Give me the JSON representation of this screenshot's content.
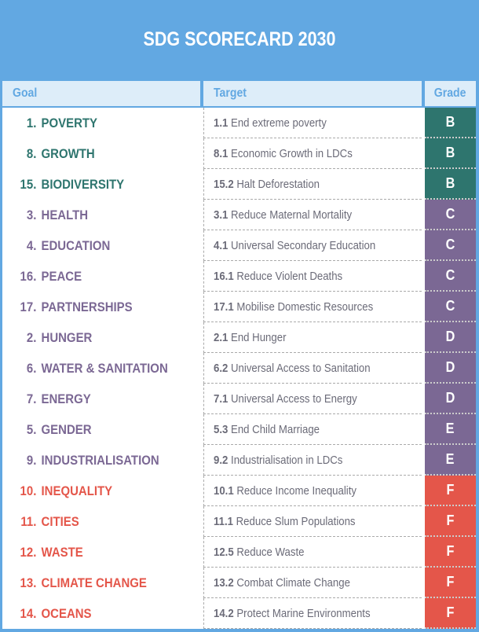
{
  "title": "SDG SCORECARD 2030",
  "headers": {
    "goal": "Goal",
    "target": "Target",
    "grade": "Grade"
  },
  "colors": {
    "background": "#62a8e2",
    "header_bg": "#ddedf9",
    "header_text": "#62a8e2",
    "grade_B": "#2e756e",
    "grade_CDE": "#7b6894",
    "grade_F": "#e4564a",
    "target_text": "#6b6b78"
  },
  "rows": [
    {
      "goal_num": "1.",
      "goal_name": "POVERTY",
      "target_code": "1.1",
      "target_text": "End extreme poverty",
      "grade": "B",
      "color": "#2e756e"
    },
    {
      "goal_num": "8.",
      "goal_name": "GROWTH",
      "target_code": "8.1",
      "target_text": "Economic Growth in LDCs",
      "grade": "B",
      "color": "#2e756e"
    },
    {
      "goal_num": "15.",
      "goal_name": "BIODIVERSITY",
      "target_code": "15.2",
      "target_text": "Halt Deforestation",
      "grade": "B",
      "color": "#2e756e"
    },
    {
      "goal_num": "3.",
      "goal_name": "HEALTH",
      "target_code": "3.1",
      "target_text": "Reduce Maternal Mortality",
      "grade": "C",
      "color": "#7b6894"
    },
    {
      "goal_num": "4.",
      "goal_name": "EDUCATION",
      "target_code": "4.1",
      "target_text": "Universal Secondary Education",
      "grade": "C",
      "color": "#7b6894"
    },
    {
      "goal_num": "16.",
      "goal_name": "PEACE",
      "target_code": "16.1",
      "target_text": "Reduce Violent Deaths",
      "grade": "C",
      "color": "#7b6894"
    },
    {
      "goal_num": "17.",
      "goal_name": "PARTNERSHIPS",
      "target_code": "17.1",
      "target_text": "Mobilise Domestic Resources",
      "grade": "C",
      "color": "#7b6894"
    },
    {
      "goal_num": "2.",
      "goal_name": "HUNGER",
      "target_code": "2.1",
      "target_text": "End Hunger",
      "grade": "D",
      "color": "#7b6894"
    },
    {
      "goal_num": "6.",
      "goal_name": "WATER & SANITATION",
      "target_code": "6.2",
      "target_text": "Universal Access to Sanitation",
      "grade": "D",
      "color": "#7b6894"
    },
    {
      "goal_num": "7.",
      "goal_name": "ENERGY",
      "target_code": "7.1",
      "target_text": "Universal Access to Energy",
      "grade": "D",
      "color": "#7b6894"
    },
    {
      "goal_num": "5.",
      "goal_name": "GENDER",
      "target_code": "5.3",
      "target_text": "End Child Marriage",
      "grade": "E",
      "color": "#7b6894"
    },
    {
      "goal_num": "9.",
      "goal_name": "INDUSTRIALISATION",
      "target_code": "9.2",
      "target_text": "Industrialisation in LDCs",
      "grade": "E",
      "color": "#7b6894"
    },
    {
      "goal_num": "10.",
      "goal_name": "INEQUALITY",
      "target_code": "10.1",
      "target_text": "Reduce Income Inequality",
      "grade": "F",
      "color": "#e4564a"
    },
    {
      "goal_num": "11.",
      "goal_name": "CITIES",
      "target_code": "11.1",
      "target_text": "Reduce Slum Populations",
      "grade": "F",
      "color": "#e4564a"
    },
    {
      "goal_num": "12.",
      "goal_name": "WASTE",
      "target_code": "12.5",
      "target_text": "Reduce Waste",
      "grade": "F",
      "color": "#e4564a"
    },
    {
      "goal_num": "13.",
      "goal_name": "CLIMATE CHANGE",
      "target_code": "13.2",
      "target_text": "Combat Climate Change",
      "grade": "F",
      "color": "#e4564a"
    },
    {
      "goal_num": "14.",
      "goal_name": "OCEANS",
      "target_code": "14.2",
      "target_text": "Protect Marine Environments",
      "grade": "F",
      "color": "#e4564a"
    }
  ]
}
